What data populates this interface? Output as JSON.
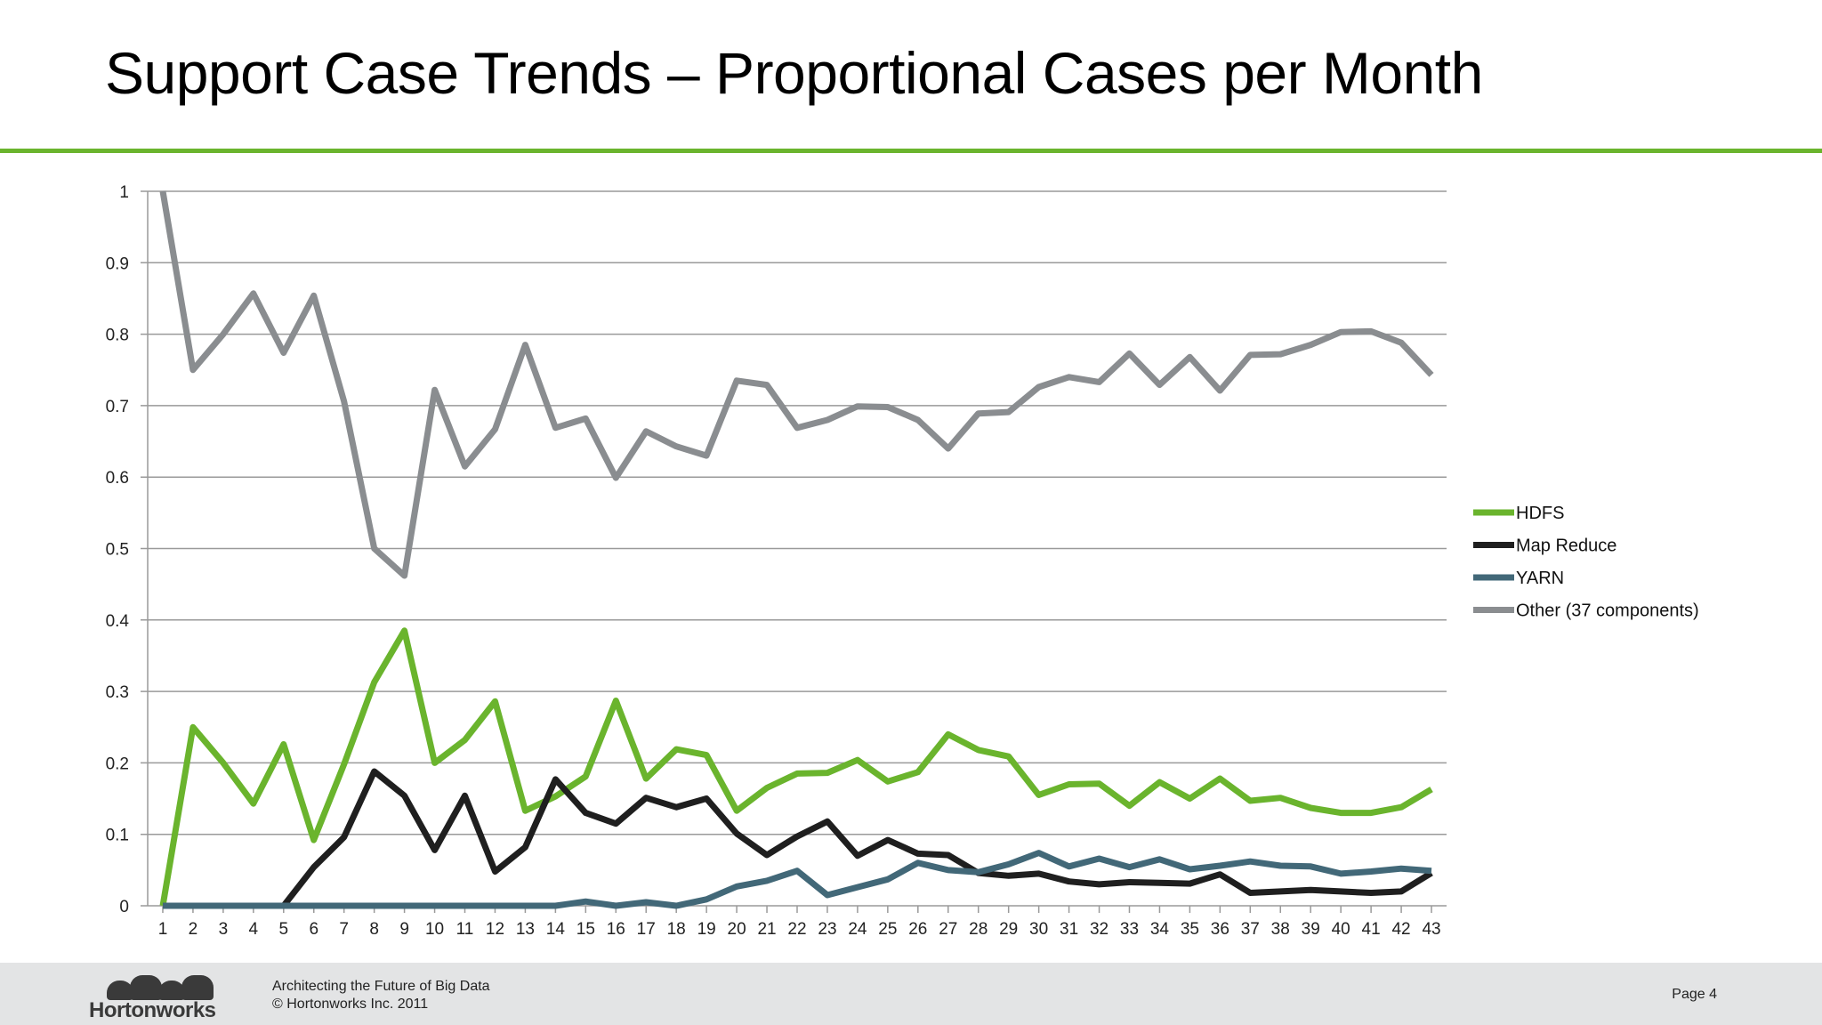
{
  "slide": {
    "title": "Support Case Trends – Proportional Cases per Month",
    "accent_color": "#6ab42d"
  },
  "footer": {
    "logo_text": "Hortonworks",
    "tagline": "Architecting the Future of Big Data",
    "copyright": "© Hortonworks Inc. 2011",
    "page": "Page 4",
    "background": "#e3e4e5"
  },
  "chart_data": {
    "type": "line",
    "title": "",
    "xlabel": "",
    "ylabel": "",
    "x": [
      1,
      2,
      3,
      4,
      5,
      6,
      7,
      8,
      9,
      10,
      11,
      12,
      13,
      14,
      15,
      16,
      17,
      18,
      19,
      20,
      21,
      22,
      23,
      24,
      25,
      26,
      27,
      28,
      29,
      30,
      31,
      32,
      33,
      34,
      35,
      36,
      37,
      38,
      39,
      40,
      41,
      42,
      43
    ],
    "ylim": [
      0,
      1
    ],
    "yticks": [
      0,
      0.1,
      0.2,
      0.3,
      0.4,
      0.5,
      0.6,
      0.7,
      0.8,
      0.9,
      1
    ],
    "ytick_labels": [
      "0",
      "0.1",
      "0.2",
      "0.3",
      "0.4",
      "0.5",
      "0.6",
      "0.7",
      "0.8",
      "0.9",
      "1"
    ],
    "grid": true,
    "legend_position": "right",
    "series": [
      {
        "name": "HDFS",
        "color": "#6ab42d",
        "values": [
          0,
          0.25,
          0.2,
          0.143,
          0.226,
          0.092,
          0.198,
          0.313,
          0.385,
          0.2,
          0.232,
          0.286,
          0.133,
          0.153,
          0.181,
          0.287,
          0.178,
          0.219,
          0.211,
          0.133,
          0.165,
          0.185,
          0.186,
          0.204,
          0.174,
          0.187,
          0.24,
          0.218,
          0.209,
          0.155,
          0.17,
          0.171,
          0.14,
          0.173,
          0.15,
          0.178,
          0.147,
          0.151,
          0.137,
          0.13,
          0.13,
          0.138,
          0.163
        ]
      },
      {
        "name": "Map Reduce",
        "color": "#1f1f1f",
        "values": [
          0,
          0,
          0,
          0,
          0,
          0.054,
          0.096,
          0.188,
          0.154,
          0.078,
          0.154,
          0.048,
          0.082,
          0.177,
          0.13,
          0.115,
          0.151,
          0.138,
          0.15,
          0.101,
          0.071,
          0.097,
          0.118,
          0.07,
          0.092,
          0.073,
          0.071,
          0.046,
          0.042,
          0.045,
          0.034,
          0.03,
          0.033,
          0.032,
          0.031,
          0.044,
          0.018,
          0.02,
          0.022,
          0.02,
          0.018,
          0.02,
          0.046
        ]
      },
      {
        "name": "YARN",
        "color": "#426878",
        "values": [
          0,
          0,
          0,
          0,
          0,
          0,
          0,
          0,
          0,
          0,
          0,
          0,
          0,
          0,
          0.006,
          0,
          0.005,
          0,
          0.009,
          0.027,
          0.035,
          0.049,
          0.015,
          0.026,
          0.037,
          0.06,
          0.05,
          0.047,
          0.058,
          0.074,
          0.055,
          0.066,
          0.054,
          0.065,
          0.051,
          0.056,
          0.062,
          0.056,
          0.055,
          0.045,
          0.048,
          0.052,
          0.049
        ]
      },
      {
        "name": "Other (37 components)",
        "color": "#8a8d90",
        "values": [
          1,
          0.75,
          0.8,
          0.857,
          0.774,
          0.854,
          0.706,
          0.5,
          0.462,
          0.722,
          0.615,
          0.667,
          0.785,
          0.669,
          0.682,
          0.599,
          0.664,
          0.643,
          0.63,
          0.735,
          0.729,
          0.669,
          0.68,
          0.699,
          0.698,
          0.68,
          0.64,
          0.689,
          0.691,
          0.726,
          0.74,
          0.733,
          0.773,
          0.729,
          0.768,
          0.721,
          0.771,
          0.772,
          0.785,
          0.803,
          0.804,
          0.788,
          0.743
        ]
      }
    ]
  }
}
